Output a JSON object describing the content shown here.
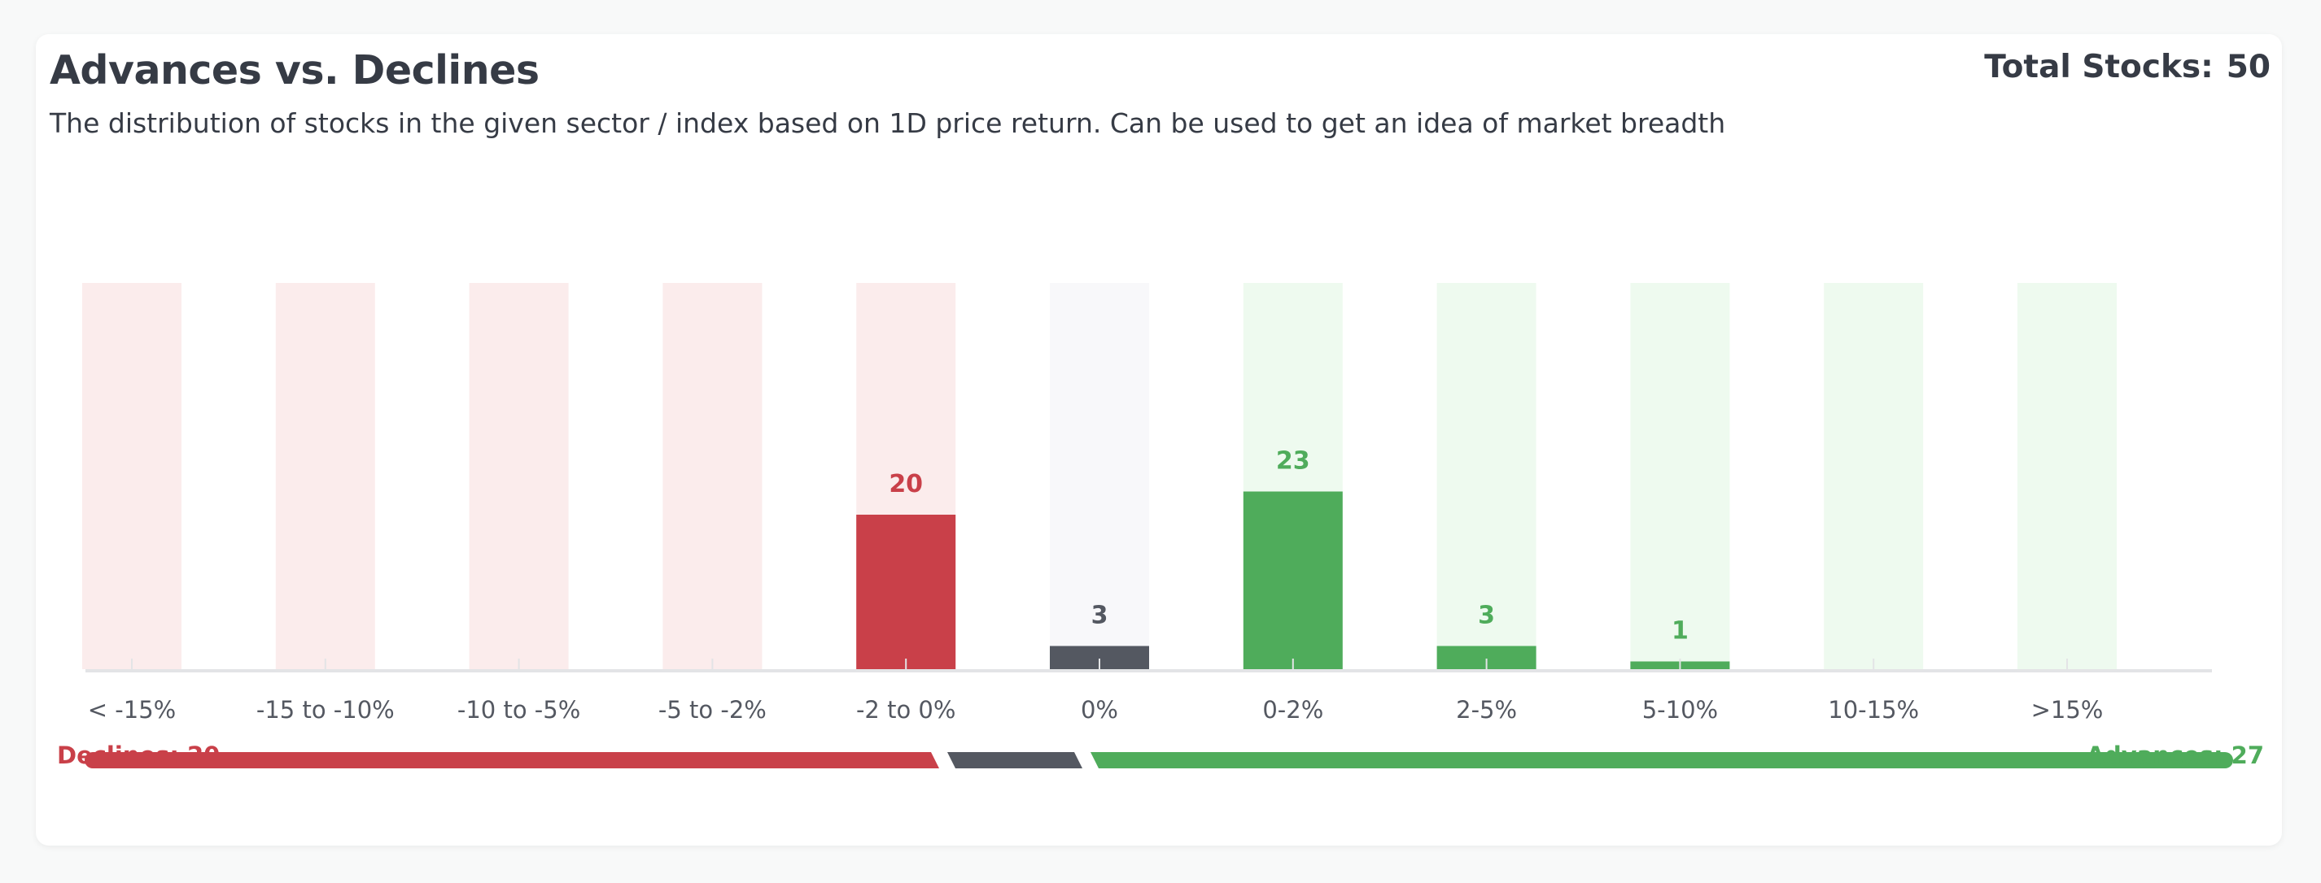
{
  "header": {
    "title": "Advances vs. Declines",
    "subtitle": "The distribution of stocks in the given sector / index based on 1D price return. Can be used to get an idea of market breadth",
    "total_label": "Total Stocks:",
    "total_value": "50"
  },
  "legend": {
    "declines_label": "Declines:",
    "declines_value": "20",
    "advances_label": "Advances:",
    "advances_value": "27"
  },
  "colors": {
    "decline": "#c94049",
    "decline_bg": "#fbecec",
    "neutral": "#545861",
    "neutral_bg": "#f8f8fa",
    "advance": "#4fac5b",
    "advance_bg": "#eefaef",
    "axis": "#e3e4e6",
    "tick_label": "#545861"
  },
  "chart_data": {
    "type": "bar",
    "categories": [
      "< -15%",
      "-15 to -10%",
      "-10 to -5%",
      "-5 to -2%",
      "-2 to 0%",
      "0%",
      "0-2%",
      "2-5%",
      "5-10%",
      "10-15%",
      ">15%"
    ],
    "values": [
      0,
      0,
      0,
      0,
      20,
      3,
      23,
      3,
      1,
      0,
      0
    ],
    "category_group": [
      "decline",
      "decline",
      "decline",
      "decline",
      "decline",
      "neutral",
      "advance",
      "advance",
      "advance",
      "advance",
      "advance"
    ],
    "data_labels": [
      "",
      "",
      "",
      "",
      "20",
      "3",
      "23",
      "3",
      "1",
      "",
      ""
    ],
    "ylim": [
      0,
      50
    ],
    "xlabel": "",
    "ylabel": "",
    "grid": false,
    "breadth_bar": {
      "declines": 20,
      "unchanged": 3,
      "advances": 27
    }
  }
}
